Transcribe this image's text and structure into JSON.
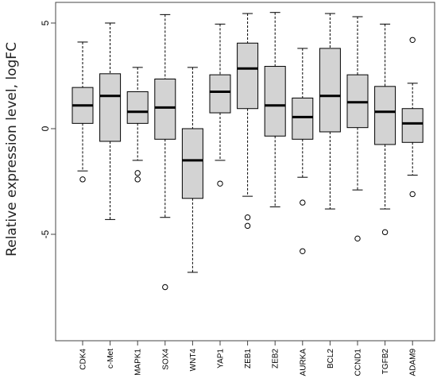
{
  "chart_data": {
    "type": "box",
    "ylabel": "Relative expression level, logFC",
    "ylim": [
      -10,
      6
    ],
    "yticks": [
      5,
      0,
      -5
    ],
    "ytick_labels": [
      "5",
      "0",
      "-5"
    ],
    "categories": [
      "CDK4",
      "c-Met",
      "MAPK1",
      "SOX4",
      "WNT4",
      "YAP1",
      "ZEB1",
      "ZEB2",
      "AURKA",
      "BCL2",
      "CCND1",
      "TGFB2",
      "ADAM9"
    ],
    "boxes": [
      {
        "label": "CDK4",
        "whisker_low": -2.0,
        "q1": 0.25,
        "median": 1.1,
        "q3": 1.95,
        "whisker_high": 4.1,
        "outliers": [
          -2.4
        ]
      },
      {
        "label": "c-Met",
        "whisker_low": -4.3,
        "q1": -0.6,
        "median": 1.55,
        "q3": 2.6,
        "whisker_high": 5.0,
        "outliers": []
      },
      {
        "label": "MAPK1",
        "whisker_low": -1.5,
        "q1": 0.25,
        "median": 0.8,
        "q3": 1.75,
        "whisker_high": 2.9,
        "outliers": [
          -2.1,
          -2.4
        ]
      },
      {
        "label": "SOX4",
        "whisker_low": -4.2,
        "q1": -0.5,
        "median": 1.0,
        "q3": 2.35,
        "whisker_high": 5.4,
        "outliers": [
          -7.5
        ]
      },
      {
        "label": "WNT4",
        "whisker_low": -6.8,
        "q1": -3.3,
        "median": -1.5,
        "q3": 0.0,
        "whisker_high": 2.9,
        "outliers": []
      },
      {
        "label": "YAP1",
        "whisker_low": -1.5,
        "q1": 0.75,
        "median": 1.75,
        "q3": 2.55,
        "whisker_high": 4.95,
        "outliers": [
          -2.6
        ]
      },
      {
        "label": "ZEB1",
        "whisker_low": -3.2,
        "q1": 0.95,
        "median": 2.85,
        "q3": 4.05,
        "whisker_high": 5.45,
        "outliers": [
          -4.2,
          -4.6
        ]
      },
      {
        "label": "ZEB2",
        "whisker_low": -3.7,
        "q1": -0.35,
        "median": 1.1,
        "q3": 2.95,
        "whisker_high": 5.5,
        "outliers": []
      },
      {
        "label": "AURKA",
        "whisker_low": -2.3,
        "q1": -0.5,
        "median": 0.55,
        "q3": 1.45,
        "whisker_high": 3.8,
        "outliers": [
          -3.5,
          -5.8
        ]
      },
      {
        "label": "BCL2",
        "whisker_low": -3.8,
        "q1": -0.15,
        "median": 1.55,
        "q3": 3.8,
        "whisker_high": 5.45,
        "outliers": []
      },
      {
        "label": "CCND1",
        "whisker_low": -2.9,
        "q1": 0.05,
        "median": 1.25,
        "q3": 2.55,
        "whisker_high": 5.3,
        "outliers": [
          -5.2
        ]
      },
      {
        "label": "TGFB2",
        "whisker_low": -3.8,
        "q1": -0.75,
        "median": 0.8,
        "q3": 2.0,
        "whisker_high": 4.95,
        "outliers": [
          -4.9
        ]
      },
      {
        "label": "ADAM9",
        "whisker_low": -2.2,
        "q1": -0.65,
        "median": 0.25,
        "q3": 0.95,
        "whisker_high": 2.15,
        "outliers": [
          4.2,
          -3.1
        ]
      }
    ],
    "grid": false,
    "colors": {
      "box_fill": "#d3d3d3",
      "stroke": "#000000",
      "axis": "#444444"
    }
  }
}
